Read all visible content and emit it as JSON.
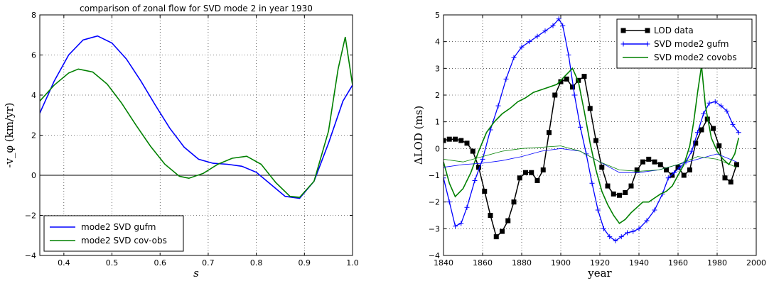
{
  "chart_data": [
    {
      "type": "line",
      "title": "comparison of zonal flow for SVD mode 2 in year 1930",
      "xlabel": "s",
      "ylabel": "-v_φ  (km/yr)",
      "xlim": [
        0.35,
        1.0
      ],
      "ylim": [
        -4,
        8
      ],
      "xticks": [
        "0.4",
        "0.5",
        "0.6",
        "0.7",
        "0.8",
        "0.9",
        "1.0"
      ],
      "yticks": [
        "−4",
        "−2",
        "0",
        "2",
        "4",
        "6",
        "8"
      ],
      "grid": true,
      "legend": "lower-left",
      "series": [
        {
          "name": "mode2 SVD gufm",
          "color": "#0000ff",
          "x": [
            0.35,
            0.38,
            0.41,
            0.44,
            0.47,
            0.5,
            0.53,
            0.56,
            0.59,
            0.62,
            0.65,
            0.68,
            0.71,
            0.74,
            0.77,
            0.8,
            0.83,
            0.86,
            0.89,
            0.92,
            0.95,
            0.98,
            1.0
          ],
          "y": [
            3.1,
            4.7,
            6.0,
            6.75,
            6.95,
            6.6,
            5.8,
            4.7,
            3.5,
            2.35,
            1.4,
            0.8,
            0.6,
            0.55,
            0.45,
            0.15,
            -0.45,
            -1.05,
            -1.15,
            -0.3,
            1.6,
            3.7,
            4.5
          ]
        },
        {
          "name": "mode2 SVD cov-obs",
          "color": "#008000",
          "x": [
            0.35,
            0.38,
            0.41,
            0.43,
            0.46,
            0.49,
            0.52,
            0.55,
            0.58,
            0.61,
            0.64,
            0.66,
            0.69,
            0.72,
            0.75,
            0.78,
            0.81,
            0.84,
            0.87,
            0.89,
            0.92,
            0.95,
            0.97,
            0.985,
            1.0
          ],
          "y": [
            3.7,
            4.5,
            5.1,
            5.3,
            5.15,
            4.55,
            3.6,
            2.5,
            1.45,
            0.55,
            -0.05,
            -0.15,
            0.1,
            0.55,
            0.85,
            0.95,
            0.55,
            -0.35,
            -1.05,
            -1.1,
            -0.3,
            2.2,
            5.3,
            6.9,
            4.5
          ]
        }
      ],
      "hline": 0
    },
    {
      "type": "line",
      "xlabel": "year",
      "ylabel": "ΔLOD (ms)",
      "xlim": [
        1840,
        2000
      ],
      "ylim": [
        -4,
        5
      ],
      "xticks": [
        "1840",
        "1860",
        "1880",
        "1900",
        "1920",
        "1940",
        "1960",
        "1980",
        "2000"
      ],
      "yticks": [
        "−4",
        "−3",
        "−2",
        "−1",
        "0",
        "1",
        "2",
        "3",
        "4",
        "5"
      ],
      "grid": true,
      "legend": "top-right",
      "series": [
        {
          "name": "LOD data",
          "color": "#000000",
          "marker": "square",
          "x": [
            1840,
            1843,
            1846,
            1849,
            1852,
            1855,
            1858,
            1861,
            1864,
            1867,
            1870,
            1873,
            1876,
            1879,
            1882,
            1885,
            1888,
            1891,
            1894,
            1897,
            1900,
            1903,
            1906,
            1909,
            1912,
            1915,
            1918,
            1921,
            1924,
            1927,
            1930,
            1933,
            1936,
            1939,
            1942,
            1945,
            1948,
            1951,
            1954,
            1957,
            1960,
            1963,
            1966,
            1969,
            1972,
            1975,
            1978,
            1981,
            1984,
            1987,
            1990
          ],
          "y": [
            0.3,
            0.35,
            0.35,
            0.3,
            0.2,
            -0.1,
            -0.7,
            -1.6,
            -2.5,
            -3.3,
            -3.1,
            -2.7,
            -2.0,
            -1.1,
            -0.9,
            -0.9,
            -1.2,
            -0.8,
            0.6,
            2.0,
            2.5,
            2.6,
            2.3,
            2.55,
            2.7,
            1.5,
            0.3,
            -0.7,
            -1.4,
            -1.7,
            -1.75,
            -1.65,
            -1.4,
            -0.8,
            -0.5,
            -0.4,
            -0.5,
            -0.6,
            -0.8,
            -1.0,
            -0.7,
            -1.0,
            -0.8,
            0.2,
            0.7,
            1.1,
            0.75,
            0.1,
            -1.1,
            -1.25,
            -0.6
          ]
        },
        {
          "name": "SVD mode2 gufm",
          "color": "#0000ff",
          "marker": "plus",
          "x": [
            1840,
            1843,
            1846,
            1849,
            1852,
            1856,
            1860,
            1864,
            1868,
            1872,
            1876,
            1880,
            1884,
            1888,
            1892,
            1896,
            1899,
            1901,
            1904,
            1907,
            1910,
            1913,
            1916,
            1919,
            1922,
            1925,
            1928,
            1931,
            1934,
            1937,
            1940,
            1944,
            1948,
            1952,
            1955,
            1958,
            1961,
            1964,
            1967,
            1970,
            1973,
            1976,
            1979,
            1982,
            1985,
            1988,
            1991
          ],
          "y": [
            -1.1,
            -2.0,
            -2.9,
            -2.8,
            -2.2,
            -1.2,
            -0.4,
            0.7,
            1.6,
            2.6,
            3.4,
            3.8,
            4.0,
            4.2,
            4.4,
            4.6,
            4.85,
            4.6,
            3.5,
            2.0,
            0.8,
            -0.2,
            -1.3,
            -2.3,
            -3.0,
            -3.3,
            -3.45,
            -3.3,
            -3.15,
            -3.1,
            -3.0,
            -2.7,
            -2.3,
            -1.7,
            -1.1,
            -0.9,
            -0.7,
            -0.5,
            -0.1,
            0.6,
            1.3,
            1.7,
            1.75,
            1.6,
            1.4,
            0.9,
            0.6
          ]
        },
        {
          "name": "SVD mode2 covobs",
          "color": "#008000",
          "x": [
            1840,
            1843,
            1846,
            1850,
            1854,
            1858,
            1862,
            1866,
            1870,
            1874,
            1878,
            1882,
            1886,
            1890,
            1894,
            1898,
            1902,
            1906,
            1909,
            1912,
            1915,
            1918,
            1921,
            1924,
            1927,
            1930,
            1933,
            1936,
            1939,
            1942,
            1945,
            1948,
            1951,
            1954,
            1957,
            1960,
            1963,
            1966,
            1968,
            1970,
            1972,
            1974,
            1977,
            1980,
            1983,
            1986,
            1989,
            1991
          ],
          "y": [
            -0.5,
            -1.3,
            -1.8,
            -1.5,
            -0.9,
            -0.1,
            0.6,
            1.0,
            1.3,
            1.5,
            1.75,
            1.9,
            2.1,
            2.2,
            2.3,
            2.4,
            2.7,
            3.0,
            2.5,
            1.4,
            0.2,
            -0.8,
            -1.6,
            -2.1,
            -2.5,
            -2.8,
            -2.65,
            -2.4,
            -2.2,
            -2.0,
            -2.0,
            -1.85,
            -1.7,
            -1.6,
            -1.4,
            -1.0,
            -0.6,
            0.1,
            1.0,
            2.1,
            3.1,
            1.6,
            0.4,
            -0.1,
            -0.4,
            -0.6,
            -0.2,
            0.4
          ]
        },
        {
          "name": "",
          "color": "#0000ff",
          "thin": true,
          "x": [
            1840,
            1850,
            1860,
            1870,
            1880,
            1890,
            1900,
            1910,
            1920,
            1930,
            1940,
            1950,
            1960,
            1970,
            1980,
            1990
          ],
          "y": [
            -0.7,
            -0.6,
            -0.55,
            -0.45,
            -0.3,
            -0.1,
            0.0,
            -0.1,
            -0.5,
            -0.9,
            -0.9,
            -0.8,
            -0.6,
            -0.4,
            -0.2,
            -0.5
          ]
        },
        {
          "name": "",
          "color": "#008000",
          "thin": true,
          "x": [
            1840,
            1850,
            1860,
            1870,
            1880,
            1890,
            1900,
            1910,
            1920,
            1930,
            1940,
            1950,
            1960,
            1970,
            1980,
            1990
          ],
          "y": [
            -0.4,
            -0.5,
            -0.3,
            -0.1,
            0.0,
            0.05,
            0.1,
            -0.1,
            -0.5,
            -0.8,
            -0.85,
            -0.8,
            -0.6,
            -0.3,
            -0.4,
            -0.7
          ]
        }
      ]
    }
  ]
}
